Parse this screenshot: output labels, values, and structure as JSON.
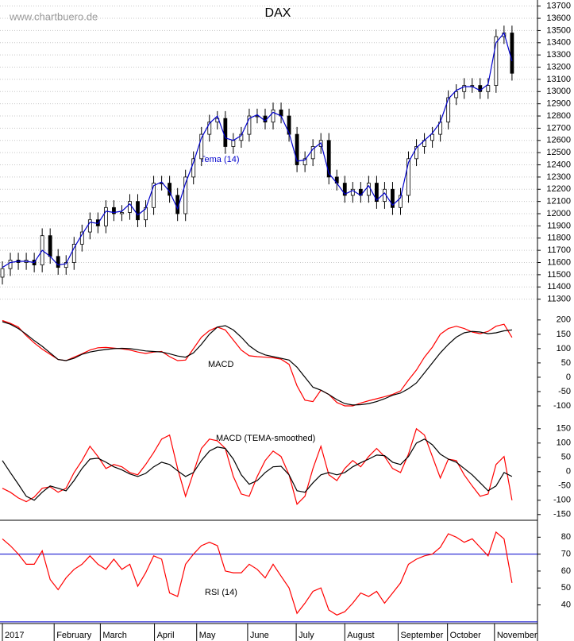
{
  "chart_data": [
    {
      "type": "candlestick",
      "title": "DAX",
      "watermark": "www.chartbuero.de",
      "color": "#000000",
      "open": [
        11480,
        11550,
        11620,
        11600,
        11620,
        11580,
        11820,
        11650,
        11560,
        11600,
        11750,
        11850,
        11950,
        11900,
        12050,
        12000,
        12010,
        12100,
        11950,
        12050,
        12250,
        12250,
        12150,
        12000,
        12300,
        12450,
        12650,
        12750,
        12780,
        12550,
        12600,
        12650,
        12800,
        12800,
        12750,
        12850,
        12800,
        12650,
        12400,
        12450,
        12550,
        12600,
        12300,
        12250,
        12150,
        12200,
        12150,
        12250,
        12100,
        12200,
        12050,
        12150,
        12450,
        12550,
        12600,
        12650,
        12750,
        12950,
        13000,
        13050,
        13050,
        13000,
        13050,
        13450,
        13480
      ],
      "high": [
        11610,
        11680,
        11680,
        11680,
        11680,
        11880,
        11880,
        11710,
        11660,
        11810,
        11910,
        12010,
        12010,
        12110,
        12110,
        12070,
        12160,
        12160,
        12110,
        12310,
        12310,
        12310,
        12210,
        12360,
        12510,
        12710,
        12810,
        12840,
        12840,
        12660,
        12710,
        12860,
        12860,
        12860,
        12910,
        12910,
        12860,
        12710,
        12510,
        12610,
        12660,
        12660,
        12360,
        12310,
        12260,
        12260,
        12310,
        12310,
        12260,
        12260,
        12210,
        12510,
        12610,
        12660,
        12710,
        12810,
        13010,
        13060,
        13110,
        13110,
        13110,
        13110,
        13510,
        13540,
        13540
      ],
      "low": [
        11420,
        11490,
        11540,
        11540,
        11520,
        11520,
        11590,
        11500,
        11500,
        11540,
        11690,
        11790,
        11840,
        11840,
        11940,
        11940,
        11950,
        11890,
        11890,
        11990,
        12190,
        12090,
        11940,
        11940,
        12240,
        12390,
        12590,
        12690,
        12490,
        12490,
        12540,
        12590,
        12740,
        12690,
        12690,
        12740,
        12590,
        12340,
        12340,
        12390,
        12490,
        12240,
        12190,
        12090,
        12090,
        12090,
        12090,
        12040,
        12040,
        11990,
        11990,
        12090,
        12390,
        12490,
        12540,
        12590,
        12690,
        12890,
        12940,
        12990,
        12940,
        12940,
        12990,
        13390,
        13090
      ],
      "close": [
        11550,
        11620,
        11600,
        11620,
        11580,
        11820,
        11650,
        11560,
        11600,
        11750,
        11850,
        11950,
        11900,
        12050,
        12000,
        12010,
        12100,
        11950,
        12050,
        12250,
        12250,
        12150,
        12000,
        12300,
        12450,
        12650,
        12750,
        12780,
        12550,
        12600,
        12650,
        12800,
        12800,
        12750,
        12850,
        12800,
        12650,
        12400,
        12450,
        12550,
        12600,
        12300,
        12250,
        12150,
        12200,
        12150,
        12250,
        12100,
        12200,
        12050,
        12150,
        12450,
        12550,
        12600,
        12650,
        12750,
        12950,
        13000,
        13050,
        13050,
        13000,
        13050,
        13450,
        13480,
        13150
      ],
      "series": [
        {
          "name": "Tema (14)",
          "color": "#0000cc",
          "values": [
            11560,
            11600,
            11610,
            11610,
            11600,
            11700,
            11650,
            11580,
            11590,
            11720,
            11830,
            11930,
            11920,
            12020,
            12010,
            12020,
            12080,
            11990,
            12040,
            12230,
            12260,
            12180,
            12040,
            12250,
            12420,
            12620,
            12740,
            12800,
            12620,
            12600,
            12640,
            12780,
            12810,
            12760,
            12830,
            12800,
            12660,
            12430,
            12440,
            12530,
            12580,
            12330,
            12250,
            12160,
            12190,
            12150,
            12230,
            12110,
            12170,
            12070,
            12130,
            12420,
            12540,
            12600,
            12660,
            12750,
            12940,
            13010,
            13040,
            13040,
            13010,
            13060,
            13400,
            13480,
            13250
          ]
        }
      ],
      "xlim": [
        -0.3,
        67.2
      ],
      "ylim": [
        11200,
        13750
      ],
      "yticks": [
        11300,
        11400,
        11500,
        11600,
        11700,
        11800,
        11900,
        12000,
        12100,
        12200,
        12300,
        12400,
        12500,
        12600,
        12700,
        12800,
        12900,
        13000,
        13100,
        13200,
        13300,
        13400,
        13500,
        13600,
        13700
      ],
      "grid": true
    },
    {
      "type": "line",
      "title": "MACD",
      "series": [
        {
          "color": "#ff0000",
          "values": [
            198,
            188,
            175,
            145,
            120,
            98,
            80,
            62,
            58,
            70,
            82,
            95,
            103,
            104,
            102,
            99,
            95,
            88,
            83,
            88,
            90,
            72,
            58,
            60,
            100,
            140,
            163,
            175,
            165,
            130,
            95,
            75,
            72,
            70,
            68,
            63,
            45,
            -30,
            -80,
            -85,
            -45,
            -60,
            -88,
            -100,
            -100,
            -90,
            -82,
            -75,
            -68,
            -60,
            -48,
            -10,
            25,
            70,
            105,
            150,
            170,
            178,
            170,
            158,
            152,
            160,
            178,
            185,
            139
          ]
        },
        {
          "color": "#000000",
          "values": [
            194,
            185,
            170,
            150,
            128,
            108,
            85,
            62,
            58,
            66,
            80,
            88,
            93,
            97,
            100,
            101,
            100,
            96,
            92,
            90,
            88,
            82,
            74,
            70,
            85,
            115,
            150,
            175,
            180,
            165,
            140,
            110,
            90,
            78,
            72,
            66,
            60,
            35,
            0,
            -35,
            -45,
            -60,
            -78,
            -92,
            -97,
            -96,
            -92,
            -85,
            -75,
            -63,
            -55,
            -40,
            -20,
            15,
            50,
            85,
            115,
            140,
            155,
            160,
            158,
            152,
            155,
            162,
            165
          ]
        }
      ],
      "xlim": [
        -0.3,
        67.2
      ],
      "ylim": [
        -125,
        230
      ],
      "yticks": [
        200,
        150,
        100,
        50,
        0,
        -50,
        -100
      ]
    },
    {
      "type": "line",
      "title": "MACD (TEMA-smoothed)",
      "series": [
        {
          "color": "#ff0000",
          "values": [
            -58,
            -72,
            -92,
            -105,
            -89,
            -58,
            -53,
            -72,
            -58,
            -3,
            39,
            89,
            53,
            11,
            25,
            17,
            -3,
            -11,
            25,
            67,
            114,
            128,
            11,
            -86,
            -3,
            81,
            114,
            108,
            81,
            -17,
            -78,
            -86,
            -17,
            39,
            72,
            53,
            -11,
            -114,
            -86,
            11,
            89,
            -11,
            -31,
            11,
            39,
            17,
            53,
            81,
            53,
            11,
            -3,
            61,
            150,
            128,
            53,
            -22,
            44,
            39,
            -11,
            -50,
            -86,
            -78,
            25,
            53,
            -100
          ]
        },
        {
          "color": "#000000",
          "values": [
            39,
            -3,
            -44,
            -86,
            -100,
            -72,
            -50,
            -58,
            -67,
            -31,
            11,
            44,
            47,
            33,
            17,
            6,
            -8,
            -17,
            -6,
            17,
            33,
            25,
            3,
            -17,
            -3,
            39,
            72,
            86,
            81,
            44,
            -11,
            -44,
            -31,
            -3,
            17,
            19,
            -11,
            -67,
            -72,
            -39,
            -11,
            -3,
            -11,
            -3,
            17,
            31,
            44,
            58,
            56,
            33,
            25,
            53,
            100,
            114,
            94,
            61,
            44,
            33,
            11,
            -11,
            -39,
            -67,
            -50,
            -3,
            -17
          ]
        }
      ],
      "xlim": [
        -0.3,
        67.2
      ],
      "ylim": [
        -170,
        205
      ],
      "yticks": [
        150,
        100,
        50,
        0,
        -50,
        -100,
        -150
      ]
    },
    {
      "type": "line",
      "title": "RSI (14)",
      "series": [
        {
          "color": "#ff0000",
          "values": [
            79,
            75,
            70,
            64,
            64,
            72,
            55,
            49,
            56,
            61,
            64,
            69,
            64,
            61,
            67,
            61,
            64,
            51,
            59,
            69,
            67,
            47,
            45,
            64,
            70,
            75,
            77,
            75,
            60,
            59,
            59,
            64,
            61,
            56,
            64,
            57,
            50,
            35,
            41,
            48,
            50,
            37,
            34,
            36,
            41,
            47,
            45,
            48,
            41,
            47,
            53,
            64,
            67,
            69,
            70,
            74,
            82,
            80,
            77,
            79,
            74,
            69,
            83,
            79,
            53
          ]
        }
      ],
      "hlines": [
        70,
        30
      ],
      "hline_color": "#0000cc",
      "xlim": [
        -0.3,
        67.2
      ],
      "ylim": [
        29,
        90
      ],
      "yticks": [
        80,
        70,
        60,
        50,
        40
      ],
      "xticks": [
        {
          "value": 0,
          "label": "2017"
        },
        {
          "value": 6.5,
          "label": "February"
        },
        {
          "value": 12.3,
          "label": "March"
        },
        {
          "value": 19.1,
          "label": "April"
        },
        {
          "value": 24.4,
          "label": "May"
        },
        {
          "value": 30.8,
          "label": "June"
        },
        {
          "value": 36.9,
          "label": "July"
        },
        {
          "value": 43,
          "label": "August"
        },
        {
          "value": 49.7,
          "label": "September"
        },
        {
          "value": 55.9,
          "label": "October"
        },
        {
          "value": 61.8,
          "label": "November"
        }
      ]
    }
  ]
}
